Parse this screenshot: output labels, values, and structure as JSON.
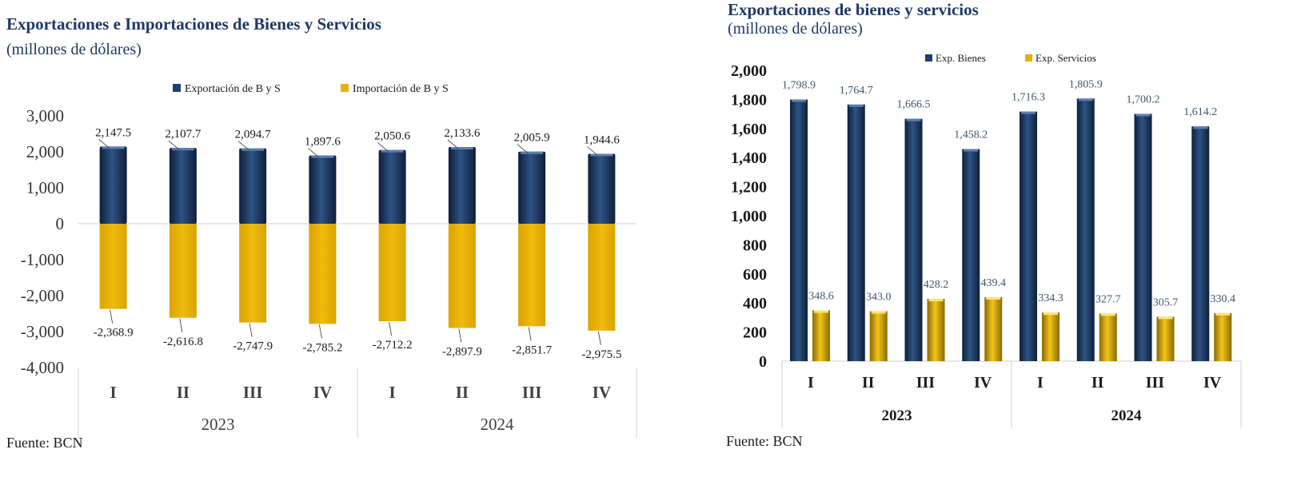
{
  "left": {
    "source": "Fuente: BCN",
    "chart_data": {
      "type": "bar",
      "title": "Exportaciones e Importaciones de Bienes y Servicios",
      "subtitle": "(millones de dólares)",
      "categories": [
        "I",
        "II",
        "III",
        "IV",
        "I",
        "II",
        "III",
        "IV"
      ],
      "groups": [
        "2023",
        "2024"
      ],
      "series": [
        {
          "name": "Exportación de B y S",
          "color": "#1f3f6e",
          "values": [
            2147.5,
            2107.7,
            2094.7,
            1897.6,
            2050.6,
            2133.6,
            2005.9,
            1944.6
          ],
          "labels": [
            "2,147.5",
            "2,107.7",
            "2,094.7",
            "1,897.6",
            "2,050.6",
            "2,133.6",
            "2,005.9",
            "1,944.6"
          ]
        },
        {
          "name": "Importación de B y S",
          "color": "#e8b004",
          "values": [
            -2368.9,
            -2616.8,
            -2747.9,
            -2785.2,
            -2712.2,
            -2897.9,
            -2851.7,
            -2975.5
          ],
          "labels": [
            "-2,368.9",
            "-2,616.8",
            "-2,747.9",
            "-2,785.2",
            "-2,712.2",
            "-2,897.9",
            "-2,851.7",
            "-2,975.5"
          ]
        }
      ],
      "ylim": [
        -4000,
        3000
      ],
      "yticks": [
        "3,000",
        "2,000",
        "1,000",
        "0",
        "-1,000",
        "-2,000",
        "-3,000",
        "-4,000"
      ],
      "legend": "top",
      "grid": false
    }
  },
  "right": {
    "source": "Fuente: BCN",
    "chart_data": {
      "type": "bar",
      "title": "Exportaciones de bienes y servicios",
      "subtitle": "(millones de dólares)",
      "categories": [
        "I",
        "II",
        "III",
        "IV",
        "I",
        "II",
        "III",
        "IV"
      ],
      "groups": [
        "2023",
        "2024"
      ],
      "series": [
        {
          "name": "Exp. Bienes",
          "color": "#1f3f6e",
          "values": [
            1798.9,
            1764.7,
            1666.5,
            1458.2,
            1716.3,
            1805.9,
            1700.2,
            1614.2
          ],
          "labels": [
            "1,798.9",
            "1,764.7",
            "1,666.5",
            "1,458.2",
            "1,716.3",
            "1,805.9",
            "1,700.2",
            "1,614.2"
          ]
        },
        {
          "name": "Exp. Servicios",
          "color": "#e8b004",
          "values": [
            348.6,
            343.0,
            428.2,
            439.4,
            334.3,
            327.7,
            305.7,
            330.4
          ],
          "labels": [
            "348.6",
            "343.0",
            "428.2",
            "439.4",
            "334.3",
            "327.7",
            "305.7",
            "330.4"
          ]
        }
      ],
      "ylim": [
        0,
        2000
      ],
      "yticks": [
        "2,000",
        "1,800",
        "1,600",
        "1,400",
        "1,200",
        "1,000",
        "800",
        "600",
        "400",
        "200",
        "0"
      ],
      "legend": "top",
      "grid": false
    }
  }
}
